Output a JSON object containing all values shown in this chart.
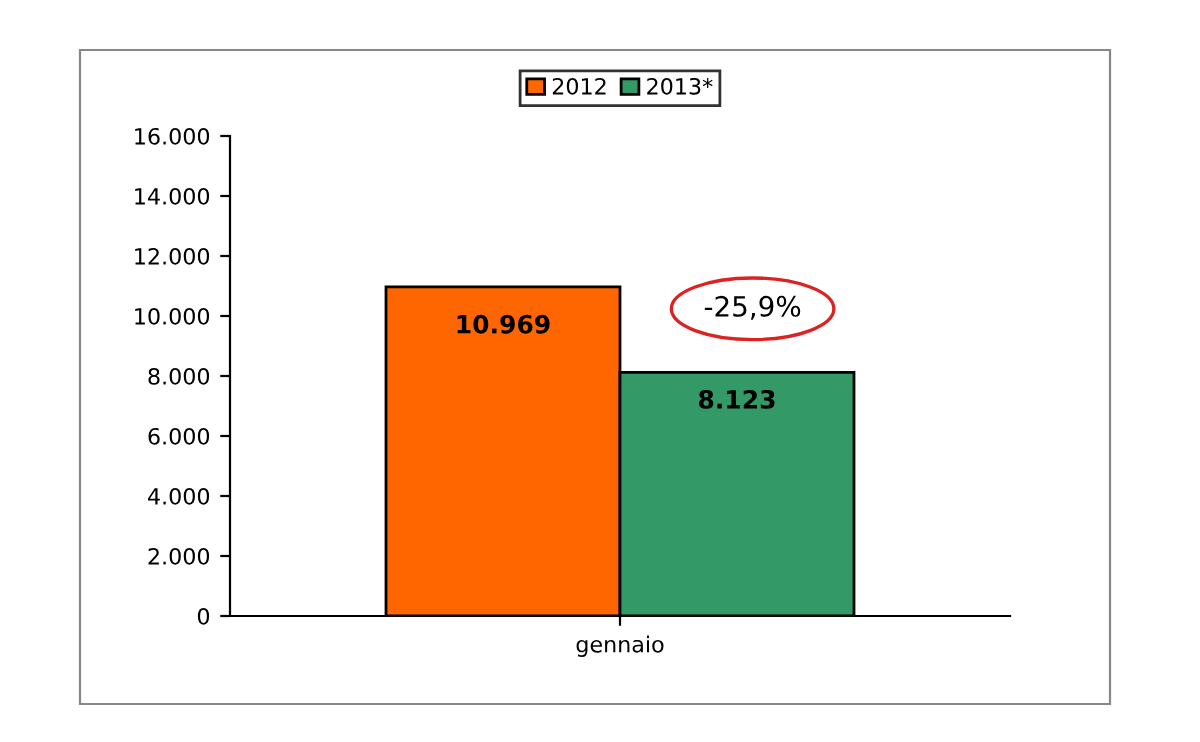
{
  "chart_data": {
    "type": "bar",
    "categories": [
      "gennaio"
    ],
    "series": [
      {
        "name": "2012",
        "color": "#ff6600",
        "values": [
          10969
        ],
        "value_labels": [
          "10.969"
        ]
      },
      {
        "name": "2013*",
        "color": "#339966",
        "values": [
          8123
        ],
        "value_labels": [
          "8.123"
        ]
      }
    ],
    "ylim": [
      0,
      16000
    ],
    "yticks": [
      0,
      {
        "value": 2000,
        "label": "2.000"
      },
      {
        "value": 4000,
        "label": "4.000"
      },
      {
        "value": 6000,
        "label": "6.000"
      },
      {
        "value": 8000,
        "label": "8.000"
      },
      {
        "value": 10000,
        "label": "10.000"
      },
      {
        "value": 12000,
        "label": "12.000"
      },
      {
        "value": 14000,
        "label": "14.000"
      },
      {
        "value": 16000,
        "label": "16.000"
      }
    ],
    "annotations": [
      "-25,9%"
    ],
    "grid": false,
    "legend": "top"
  }
}
